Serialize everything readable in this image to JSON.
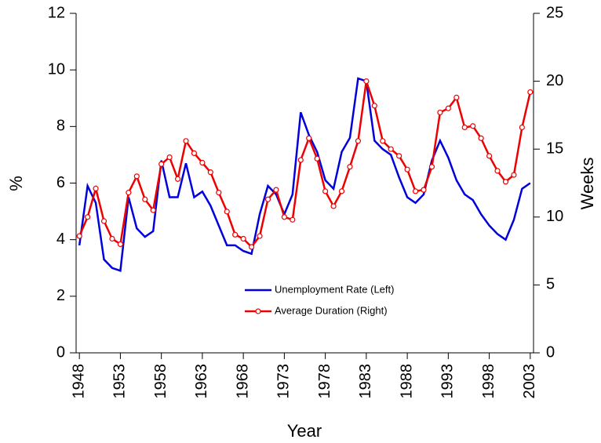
{
  "chart_data": {
    "type": "line",
    "xlabel": "Year",
    "ylabel": "%",
    "y2label": "Weeks",
    "x": [
      1948,
      1949,
      1950,
      1951,
      1952,
      1953,
      1954,
      1955,
      1956,
      1957,
      1958,
      1959,
      1960,
      1961,
      1962,
      1963,
      1964,
      1965,
      1966,
      1967,
      1968,
      1969,
      1970,
      1971,
      1972,
      1973,
      1974,
      1975,
      1976,
      1977,
      1978,
      1979,
      1980,
      1981,
      1982,
      1983,
      1984,
      1985,
      1986,
      1987,
      1988,
      1989,
      1990,
      1991,
      1992,
      1993,
      1994,
      1995,
      1996,
      1997,
      1998,
      1999,
      2000,
      2001,
      2002,
      2003
    ],
    "xlim": [
      1947.6,
      2003.4
    ],
    "xticks": [
      1948,
      1953,
      1958,
      1963,
      1968,
      1973,
      1978,
      1983,
      1988,
      1993,
      1998,
      2003
    ],
    "ylim": [
      0,
      12
    ],
    "yticks": [
      0,
      2,
      4,
      6,
      8,
      10,
      12
    ],
    "y2lim": [
      0,
      25
    ],
    "y2ticks": [
      0,
      5,
      10,
      15,
      20,
      25
    ],
    "series": [
      {
        "name": "Unemployment Rate (Left)",
        "color": "#0000dd",
        "axis": "y",
        "values": [
          3.8,
          5.9,
          5.3,
          3.3,
          3.0,
          2.9,
          5.5,
          4.4,
          4.1,
          4.3,
          6.8,
          5.5,
          5.5,
          6.7,
          5.5,
          5.7,
          5.2,
          4.5,
          3.8,
          3.8,
          3.6,
          3.5,
          4.9,
          5.9,
          5.6,
          4.9,
          5.6,
          8.5,
          7.7,
          7.1,
          6.1,
          5.8,
          7.1,
          7.6,
          9.7,
          9.6,
          7.5,
          7.2,
          7.0,
          6.2,
          5.5,
          5.3,
          5.6,
          6.8,
          7.5,
          6.9,
          6.1,
          5.6,
          5.4,
          4.9,
          4.5,
          4.2,
          4.0,
          4.7,
          5.8,
          6.0
        ]
      },
      {
        "name": "Average Duration (Right)",
        "color": "#ee0000",
        "axis": "y2",
        "markers": true,
        "values": [
          8.6,
          10.0,
          12.1,
          9.7,
          8.4,
          8.0,
          11.8,
          13.0,
          11.3,
          10.5,
          13.9,
          14.4,
          12.8,
          15.6,
          14.7,
          14.0,
          13.3,
          11.8,
          10.4,
          8.7,
          8.4,
          7.8,
          8.6,
          11.3,
          12.0,
          10.0,
          9.8,
          14.2,
          15.8,
          14.3,
          11.9,
          10.8,
          11.9,
          13.7,
          15.6,
          20.0,
          18.2,
          15.6,
          15.0,
          14.5,
          13.5,
          11.9,
          12.0,
          13.7,
          17.7,
          18.0,
          18.8,
          16.6,
          16.7,
          15.8,
          14.5,
          13.4,
          12.6,
          13.1,
          16.6,
          19.2
        ]
      }
    ]
  }
}
